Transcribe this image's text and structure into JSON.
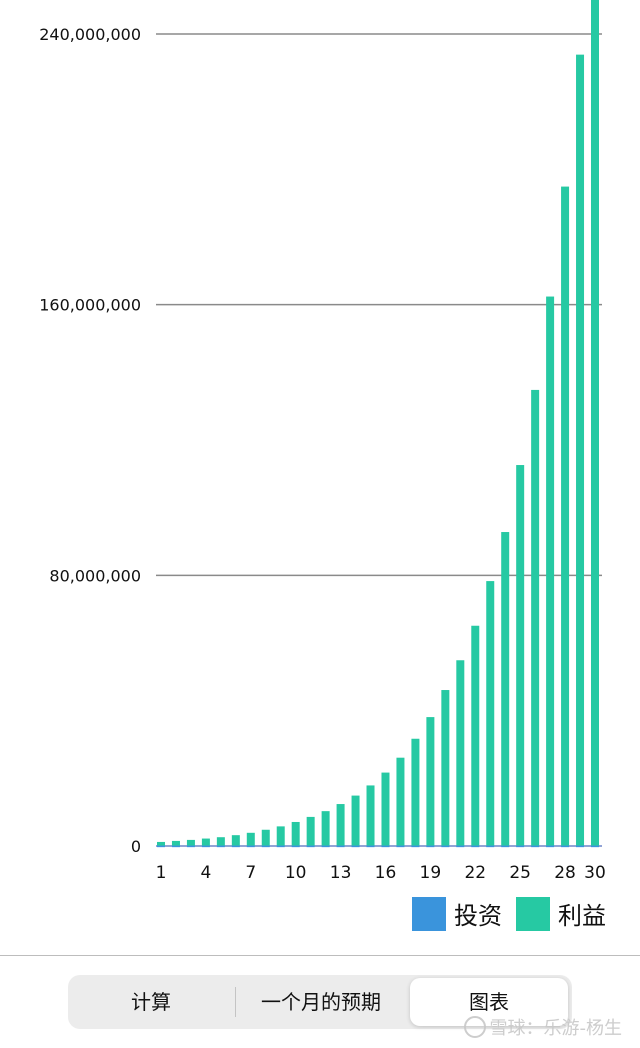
{
  "chart_data": {
    "type": "bar",
    "stacked": true,
    "categories": [
      "1",
      "2",
      "3",
      "4",
      "5",
      "6",
      "7",
      "8",
      "9",
      "10",
      "11",
      "12",
      "13",
      "14",
      "15",
      "16",
      "17",
      "18",
      "19",
      "20",
      "21",
      "22",
      "23",
      "24",
      "25",
      "26",
      "27",
      "28",
      "29",
      "30"
    ],
    "x_tick_labels": [
      "1",
      "4",
      "7",
      "10",
      "13",
      "16",
      "19",
      "22",
      "25",
      "28",
      "30"
    ],
    "series": [
      {
        "name": "投资",
        "color": "#3a94dc",
        "values": [
          100000,
          100000,
          100000,
          100000,
          100000,
          100000,
          100000,
          100000,
          100000,
          100000,
          100000,
          100000,
          100000,
          100000,
          100000,
          100000,
          100000,
          100000,
          100000,
          100000,
          100000,
          100000,
          100000,
          100000,
          100000,
          100000,
          100000,
          100000,
          100000,
          100000
        ]
      },
      {
        "name": "利益",
        "color": "#26c9a3",
        "values": [
          1100000,
          1400000,
          1700000,
          2100000,
          2500000,
          3100000,
          3800000,
          4700000,
          5700000,
          7000000,
          8500000,
          10200000,
          12300000,
          14800000,
          17800000,
          21600000,
          26000000,
          31600000,
          38000000,
          46000000,
          54800000,
          65000000,
          78200000,
          92700000,
          112500000,
          134700000,
          162300000,
          194800000,
          233800000,
          260000000
        ]
      }
    ],
    "y_ticks": [
      0,
      80000000,
      160000000,
      240000000
    ],
    "y_tick_labels": [
      "0",
      "80,000,000",
      "160,000,000",
      "240,000,000"
    ],
    "ylim": [
      0,
      240000000
    ],
    "grid": true,
    "legend_position": "bottom-right"
  },
  "legend": {
    "invest_label": "投资",
    "profit_label": "利益"
  },
  "tabs": {
    "calc": "计算",
    "monthly_forecast": "一个月的预期",
    "chart": "图表",
    "selected": "图表"
  },
  "watermark": "雪球：乐游-杨生"
}
